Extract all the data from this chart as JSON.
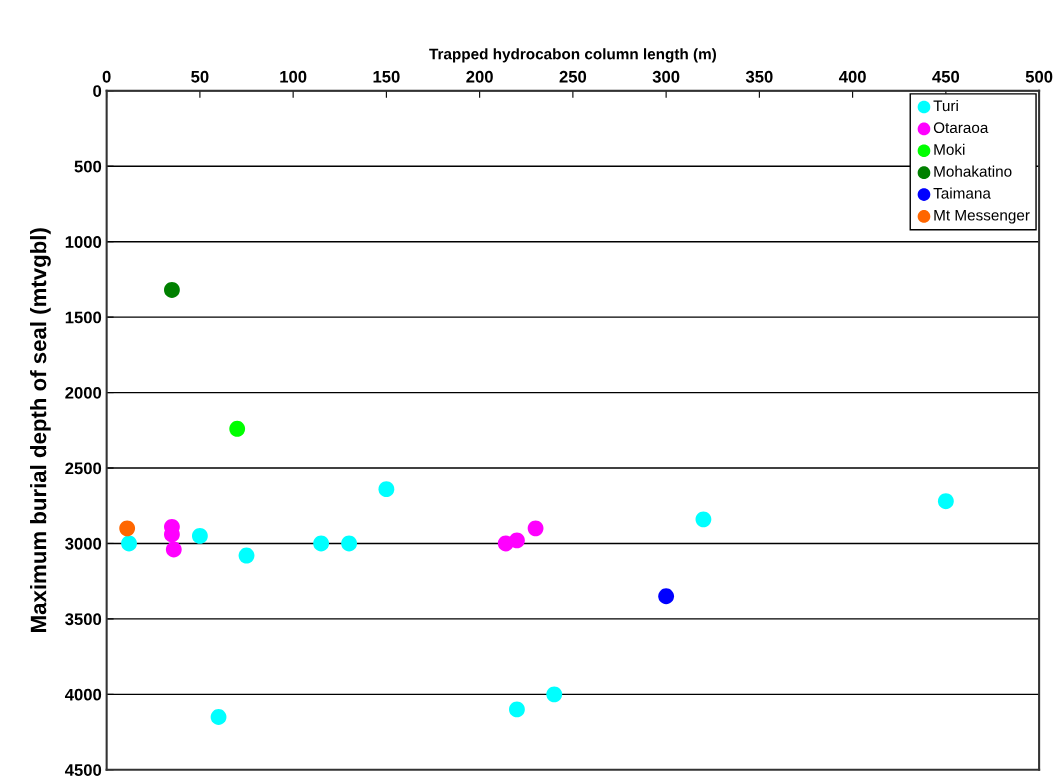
{
  "chart_data": {
    "type": "scatter",
    "xlabel": "Trapped hydrocabon column length (m)",
    "ylabel": "Maximum burial depth of seal (mtvgbl)",
    "xlim": [
      0,
      500
    ],
    "xticks": [
      0,
      50,
      100,
      150,
      200,
      250,
      300,
      350,
      400,
      450,
      500
    ],
    "ylim": [
      4500,
      0
    ],
    "yticks": [
      0,
      500,
      1000,
      1500,
      2000,
      2500,
      3000,
      3500,
      4000,
      4500
    ],
    "grid": "y",
    "legend": "top right",
    "marker": "circle",
    "series": [
      {
        "name": "Turi",
        "color": "#00ffff",
        "x": [
          12,
          50,
          75,
          60,
          115,
          130,
          150,
          220,
          240,
          320,
          450
        ],
        "values": [
          3000,
          2950,
          3080,
          4150,
          3000,
          3000,
          2640,
          4100,
          4000,
          2840,
          2720
        ]
      },
      {
        "name": "Otaraoa",
        "color": "#ff00ff",
        "x": [
          35,
          35,
          36,
          214,
          220,
          230
        ],
        "values": [
          2890,
          2940,
          3040,
          3000,
          2980,
          2900
        ]
      },
      {
        "name": "Moki",
        "color": "#00ff00",
        "x": [
          70
        ],
        "values": [
          2240
        ]
      },
      {
        "name": "Mohakatino",
        "color": "#008000",
        "x": [
          35
        ],
        "values": [
          1320
        ]
      },
      {
        "name": "Taimana",
        "color": "#0000ff",
        "x": [
          300
        ],
        "values": [
          3350
        ]
      },
      {
        "name": "Mt Messenger",
        "color": "#ff6600",
        "x": [
          11
        ],
        "values": [
          2900
        ]
      }
    ]
  }
}
